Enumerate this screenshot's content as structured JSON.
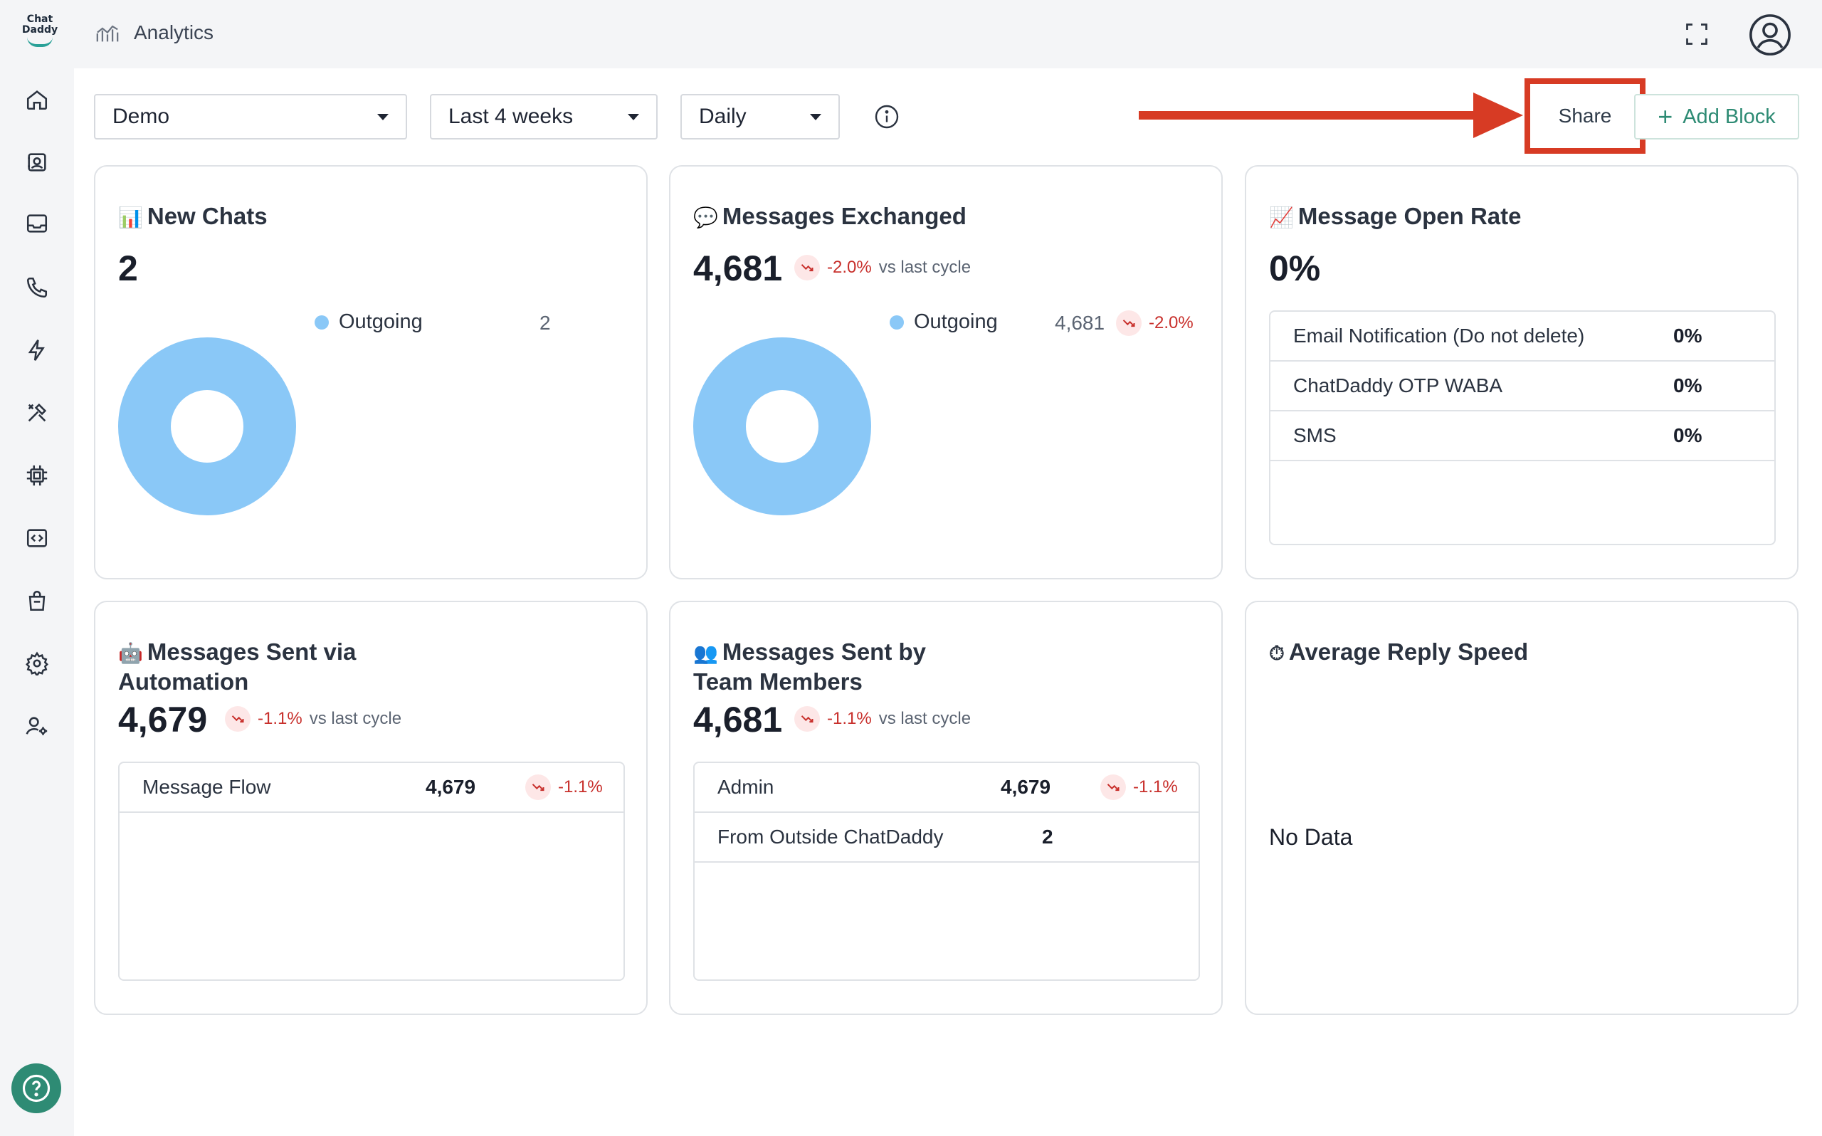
{
  "app": {
    "logo_line1": "Chat",
    "logo_line2": "Daddy",
    "page_title": "Analytics"
  },
  "sidebar": {
    "items": [
      {
        "name": "home-icon"
      },
      {
        "name": "contacts-icon"
      },
      {
        "name": "inbox-icon"
      },
      {
        "name": "phone-icon"
      },
      {
        "name": "lightning-icon"
      },
      {
        "name": "tools-icon"
      },
      {
        "name": "chip-icon"
      },
      {
        "name": "code-icon"
      },
      {
        "name": "shop-bag-icon"
      },
      {
        "name": "settings-gear-icon"
      },
      {
        "name": "user-settings-icon"
      }
    ]
  },
  "toolbar": {
    "dashboard_select": "Demo",
    "range_select": "Last 4 weeks",
    "interval_select": "Daily",
    "share_label": "Share",
    "add_block_label": "Add Block"
  },
  "colors": {
    "accent": "#2e8b74",
    "donut": "#8ac8f7",
    "negative": "#c8302c",
    "annotation": "#d73b24"
  },
  "cards": {
    "new_chats": {
      "emoji": "📊",
      "title": "New Chats",
      "value": "2",
      "legend_label": "Outgoing",
      "legend_value": "2"
    },
    "messages_exchanged": {
      "emoji": "💬",
      "title": "Messages Exchanged",
      "value": "4,681",
      "trend": "-2.0%",
      "trend_suffix": "vs last cycle",
      "legend_label": "Outgoing",
      "legend_value": "4,681",
      "legend_trend": "-2.0%"
    },
    "open_rate": {
      "emoji": "📈",
      "title": "Message Open Rate",
      "value": "0%",
      "rows": [
        {
          "label": "Email Notification (Do not delete)",
          "value": "0%"
        },
        {
          "label": "ChatDaddy OTP WABA",
          "value": "0%"
        },
        {
          "label": "SMS",
          "value": "0%"
        }
      ]
    },
    "automation": {
      "emoji": "🤖",
      "title_line1": "Messages Sent via",
      "title_line2": "Automation",
      "value": "4,679",
      "trend": "-1.1%",
      "trend_suffix": "vs last cycle",
      "rows": [
        {
          "label": "Message Flow",
          "value": "4,679",
          "trend": "-1.1%"
        }
      ]
    },
    "team": {
      "emoji": "👥",
      "title_line1": "Messages Sent by",
      "title_line2": "Team Members",
      "value": "4,681",
      "trend": "-1.1%",
      "trend_suffix": "vs last cycle",
      "rows": [
        {
          "label": "Admin",
          "value": "4,679",
          "trend": "-1.1%"
        },
        {
          "label": "From Outside ChatDaddy",
          "value": "2",
          "trend": ""
        }
      ]
    },
    "reply_speed": {
      "emoji": "⏱",
      "title": "Average Reply Speed",
      "empty": "No Data"
    }
  }
}
